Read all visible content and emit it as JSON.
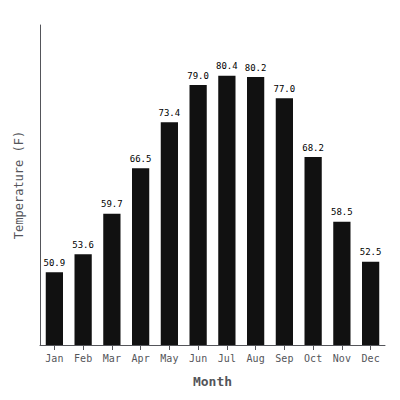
{
  "chart_data": {
    "type": "bar",
    "categories": [
      "Jan",
      "Feb",
      "Mar",
      "Apr",
      "May",
      "Jun",
      "Jul",
      "Aug",
      "Sep",
      "Oct",
      "Nov",
      "Dec"
    ],
    "values": [
      50.9,
      53.6,
      59.7,
      66.5,
      73.4,
      79.0,
      80.4,
      80.2,
      77.0,
      68.2,
      58.5,
      52.5
    ],
    "value_labels": [
      "50.9",
      "53.6",
      "59.7",
      "66.5",
      "73.4",
      "79.0",
      "80.4",
      "80.2",
      "77.0",
      "68.2",
      "58.5",
      "52.5"
    ],
    "color": "#111111",
    "xlabel": "Month",
    "ylabel": "Temperature (F)",
    "ylim": [
      40,
      88
    ],
    "grid": false,
    "data_labels": true,
    "tick_labels": "x"
  }
}
